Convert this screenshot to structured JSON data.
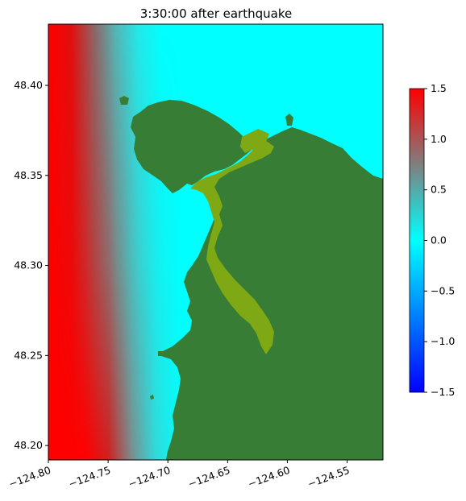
{
  "title": "3:30:00 after earthquake",
  "map": {
    "x_ticks": [
      "−124.80",
      "−124.75",
      "−124.70",
      "−124.65",
      "−124.60",
      "−124.55"
    ],
    "y_ticks": [
      "48.40",
      "48.35",
      "48.30",
      "48.25",
      "48.20"
    ],
    "x_tick_values": [
      -124.8,
      -124.75,
      -124.7,
      -124.65,
      -124.6,
      -124.55
    ],
    "y_tick_values": [
      48.4,
      48.35,
      48.3,
      48.25,
      48.2
    ],
    "xlim": [
      -124.8,
      -124.52
    ],
    "ylim": [
      48.192,
      48.434
    ],
    "colors": {
      "land": "#377d35",
      "wet_land": "#7fa914",
      "water": "#00ffff",
      "wave_high": "#ff0000",
      "wave_mid": "#7f7f7f"
    }
  },
  "colorbar": {
    "ticks": [
      "1.5",
      "1.0",
      "0.5",
      "0.0",
      "−0.5",
      "−1.0",
      "−1.5"
    ],
    "tick_values": [
      1.5,
      1.0,
      0.5,
      0.0,
      -0.5,
      -1.0,
      -1.5
    ],
    "range": [
      -1.5,
      1.5
    ],
    "stops": [
      {
        "value": -1.5,
        "color": "#0000ff"
      },
      {
        "value": 0.0,
        "color": "#00ffff"
      },
      {
        "value": 0.75,
        "color": "#7f7f7f"
      },
      {
        "value": 1.5,
        "color": "#ff0000"
      }
    ]
  }
}
